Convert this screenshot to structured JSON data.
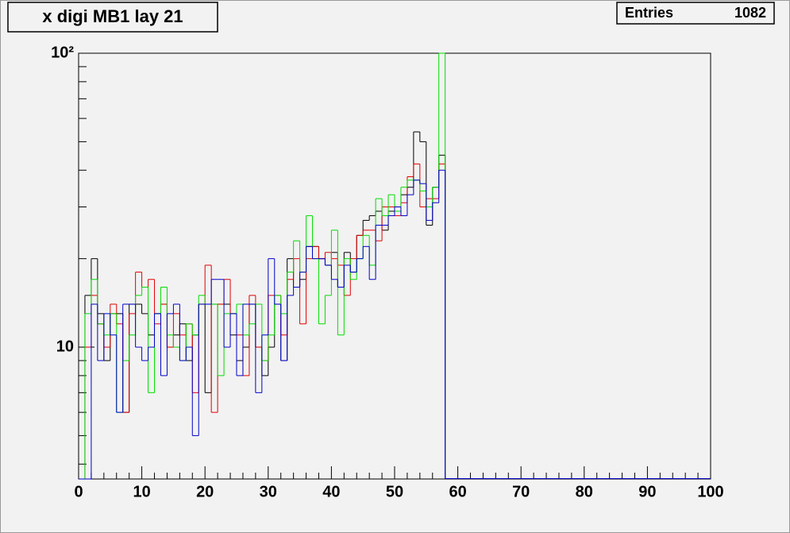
{
  "chart_data": {
    "type": "histogram",
    "title": "x digi MB1 lay 21",
    "stats": {
      "label": "Entries",
      "value": 1082
    },
    "bins": [
      0,
      1,
      2,
      3,
      4,
      5,
      6,
      7,
      8,
      9,
      10,
      11,
      12,
      13,
      14,
      15,
      16,
      17,
      18,
      19,
      20,
      21,
      22,
      23,
      24,
      25,
      26,
      27,
      28,
      29,
      30,
      31,
      32,
      33,
      34,
      35,
      36,
      37,
      38,
      39,
      40,
      41,
      42,
      43,
      44,
      45,
      46,
      47,
      48,
      49,
      50,
      51,
      52,
      53,
      54,
      55,
      56,
      57,
      58
    ],
    "series": [
      {
        "color": "#000000",
        "values": [
          0,
          15,
          20,
          13,
          9,
          13,
          13,
          6,
          14,
          14,
          13,
          11,
          13,
          14,
          10,
          11,
          12,
          9,
          11,
          14,
          7,
          14,
          14,
          14,
          11,
          9,
          10,
          14,
          10,
          8,
          10,
          14,
          9,
          20,
          16,
          17,
          22,
          22,
          20,
          19,
          21,
          16,
          21,
          18,
          24,
          27,
          28,
          29,
          25,
          29,
          30,
          33,
          35,
          54,
          50,
          26,
          35,
          45
        ]
      },
      {
        "color": "#e00000",
        "values": [
          0,
          10,
          15,
          12,
          10,
          14,
          12,
          6,
          13,
          18,
          16,
          17,
          12,
          14,
          10,
          13,
          11,
          12,
          7,
          14,
          19,
          6,
          14,
          17,
          13,
          11,
          8,
          15,
          10,
          9,
          15,
          15,
          11,
          17,
          20,
          12,
          20,
          22,
          20,
          21,
          20,
          19,
          15,
          20,
          24,
          25,
          25,
          23,
          30,
          30,
          28,
          31,
          38,
          42,
          30,
          32,
          32,
          42
        ]
      },
      {
        "color": "#00dd00",
        "values": [
          0,
          13,
          17,
          12,
          11,
          13,
          6,
          9,
          11,
          15,
          16,
          7,
          13,
          16,
          11,
          10,
          9,
          12,
          11,
          15,
          14,
          14,
          8,
          13,
          13,
          14,
          11,
          12,
          14,
          9,
          11,
          15,
          13,
          18,
          23,
          18,
          28,
          20,
          12,
          15,
          25,
          11,
          20,
          17,
          20,
          24,
          19,
          32,
          28,
          33,
          29,
          35,
          37,
          37,
          34,
          30,
          35,
          100
        ]
      },
      {
        "color": "#0000cc",
        "values": [
          0,
          0,
          14,
          9,
          13,
          11,
          6,
          14,
          14,
          10,
          9,
          10,
          13,
          8,
          13,
          14,
          9,
          10,
          5,
          14,
          14,
          17,
          17,
          10,
          13,
          8,
          14,
          14,
          7,
          11,
          20,
          14,
          9,
          15,
          16,
          18,
          22,
          20,
          20,
          19,
          17,
          16,
          19,
          18,
          20,
          22,
          17,
          26,
          26,
          28,
          30,
          28,
          33,
          37,
          36,
          27,
          31,
          40
        ]
      }
    ],
    "xlim": [
      0,
      100
    ],
    "xticks": [
      0,
      10,
      20,
      30,
      40,
      50,
      60,
      70,
      80,
      90,
      100
    ],
    "ylim": [
      3.56,
      100
    ],
    "yticks": [
      10,
      {
        "value": 100,
        "label": "10²"
      }
    ],
    "log_y": true
  }
}
